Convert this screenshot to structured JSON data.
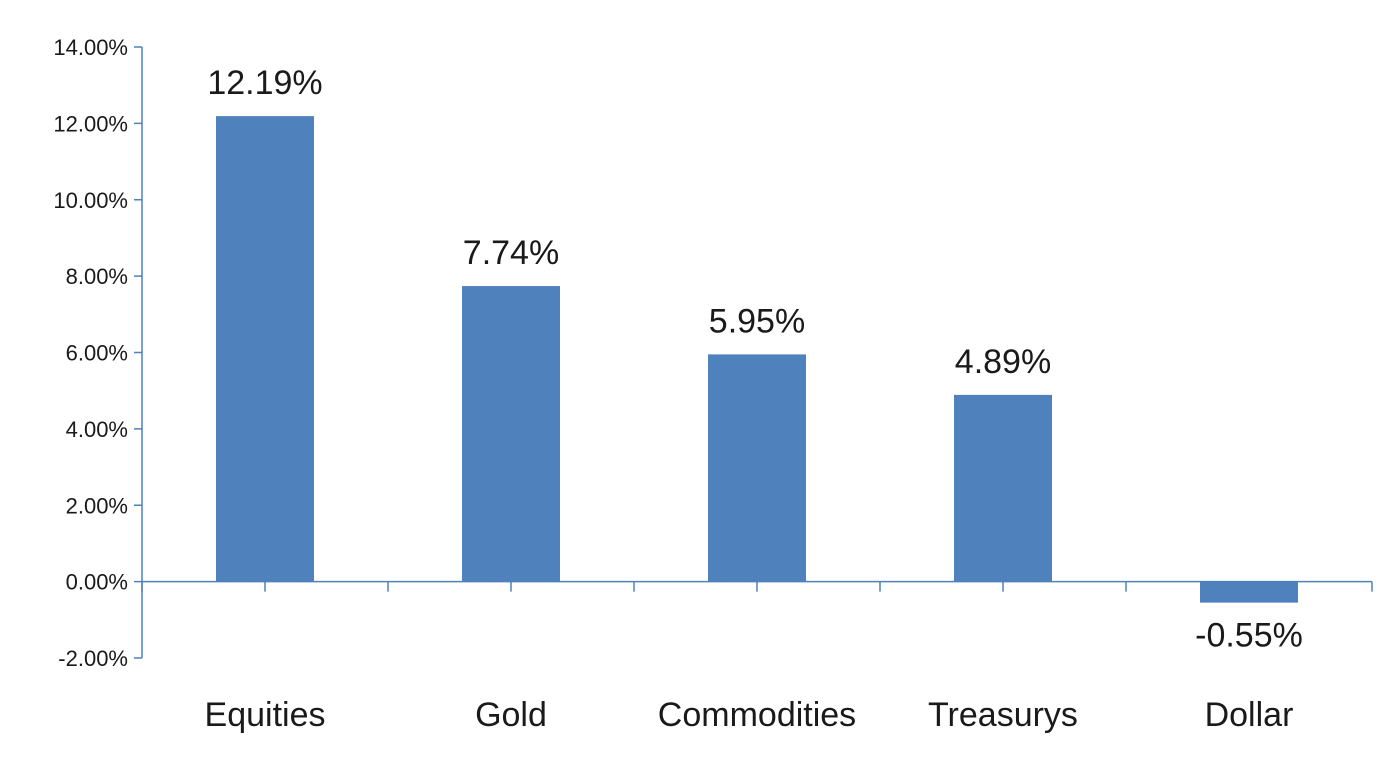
{
  "chart_data": {
    "type": "bar",
    "title": "",
    "xlabel": "",
    "ylabel": "",
    "categories": [
      "Equities",
      "Gold",
      "Commodities",
      "Treasurys",
      "Dollar"
    ],
    "values": [
      12.19,
      7.74,
      5.95,
      4.89,
      -0.55
    ],
    "data_labels": [
      "12.19%",
      "7.74%",
      "5.95%",
      "4.89%",
      "-0.55%"
    ],
    "ylim": [
      -2,
      14
    ],
    "yticks": [
      -2,
      0,
      2,
      4,
      6,
      8,
      10,
      12,
      14
    ],
    "ytick_labels": [
      "-2.00%",
      "0.00%",
      "2.00%",
      "4.00%",
      "6.00%",
      "8.00%",
      "10.00%",
      "12.00%",
      "14.00%"
    ],
    "grid": false,
    "legend": "none",
    "colors": {
      "bar": "#4f81bd",
      "axis": "#4f81bd"
    }
  }
}
